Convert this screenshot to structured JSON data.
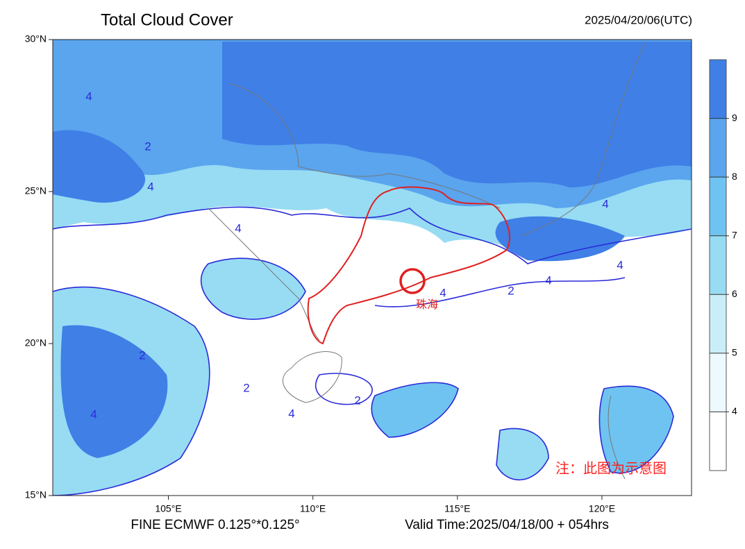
{
  "header": {
    "title": "Total Cloud Cover",
    "timestamp": "2025/04/20/06(UTC)"
  },
  "map": {
    "xlim": [
      101,
      123.1
    ],
    "ylim": [
      15,
      30
    ],
    "xticks": [
      {
        "value": 105,
        "label": "105°E"
      },
      {
        "value": 110,
        "label": "110°E"
      },
      {
        "value": 115,
        "label": "115°E"
      },
      {
        "value": 120,
        "label": "120°E"
      }
    ],
    "yticks": [
      {
        "value": 15,
        "label": "15°N"
      },
      {
        "value": 20,
        "label": "20°N"
      },
      {
        "value": 25,
        "label": "25°N"
      },
      {
        "value": 30,
        "label": "30°N"
      }
    ]
  },
  "colorbar": {
    "bounds": [
      3,
      10
    ],
    "ticks": [
      4,
      5,
      6,
      7,
      8,
      9
    ],
    "colors": [
      "#ffffff",
      "#eef9fd",
      "#c9eefa",
      "#97dcf3",
      "#6fc3f0",
      "#5aa5ee",
      "#3f7fe6"
    ]
  },
  "contour_labels": [
    "4",
    "2",
    "4",
    "4",
    "4",
    "2",
    "4",
    "4",
    "2",
    "4",
    "4",
    "2",
    "2",
    "4"
  ],
  "annotations": {
    "city": "珠海",
    "note": "注：此图为示意图"
  },
  "footer": {
    "model": "FINE ECMWF 0.125°*0.125°",
    "valid_time": "Valid Time:2025/04/18/00 + 054hrs"
  }
}
